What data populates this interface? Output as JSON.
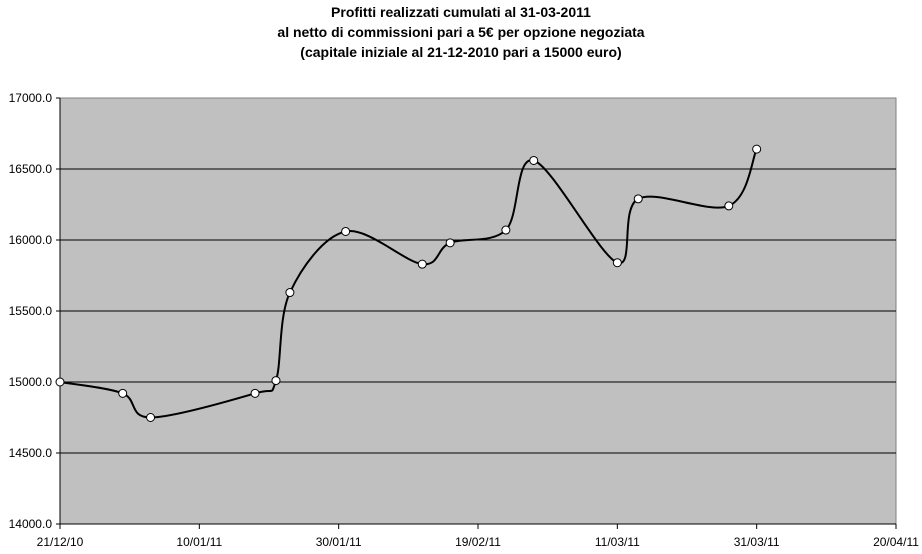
{
  "chart_data": {
    "type": "line",
    "title_lines": [
      "Profitti realizzati cumulati al 31-03-2011",
      "al netto di commissioni pari a 5€ per opzione negoziata",
      "(capitale iniziale al 21-12-2010 pari a 15000 euro)"
    ],
    "xlabel": "",
    "ylabel": "",
    "x_tick_labels": [
      "21/12/10",
      "10/01/11",
      "30/01/11",
      "19/02/11",
      "11/03/11",
      "31/03/11",
      "20/04/11"
    ],
    "y_tick_labels": [
      "14000.0",
      "14500.0",
      "15000.0",
      "15500.0",
      "16000.0",
      "16500.0",
      "17000.0"
    ],
    "xlim": [
      "2010-12-21",
      "2011-04-20"
    ],
    "ylim": [
      14000,
      17000
    ],
    "grid": "horizontal",
    "background_color": "#c0c0c0",
    "line_color": "#000000",
    "marker_fill": "#ffffff",
    "series": [
      {
        "x": [
          "2010-12-21",
          "2010-12-30",
          "2011-01-03",
          "2011-01-18",
          "2011-01-21",
          "2011-01-23",
          "2011-01-31",
          "2011-02-11",
          "2011-02-15",
          "2011-02-23",
          "2011-02-27",
          "2011-03-11",
          "2011-03-14",
          "2011-03-27",
          "2011-03-31"
        ],
        "values": [
          15000,
          14920,
          14750,
          14920,
          15010,
          15630,
          16060,
          15830,
          15980,
          16070,
          16560,
          15840,
          16290,
          16240,
          16640
        ]
      }
    ]
  }
}
